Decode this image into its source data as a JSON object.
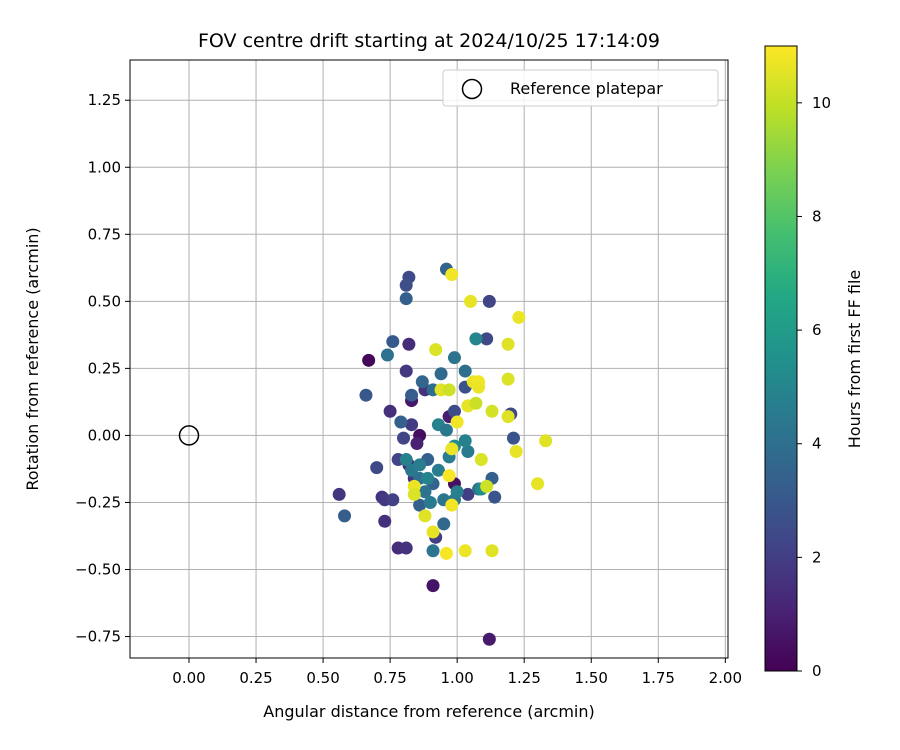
{
  "chart_data": {
    "type": "scatter",
    "title": "FOV centre drift starting at 2024/10/25 17:14:09",
    "xlabel": "Angular distance from reference (arcmin)",
    "ylabel": "Rotation from reference (arcmin)",
    "xlim": [
      -0.22,
      2.01
    ],
    "ylim": [
      -0.83,
      1.4
    ],
    "grid": true,
    "legend_position": "top-right",
    "x_ticks": [
      "0.00",
      "0.25",
      "0.50",
      "0.75",
      "1.00",
      "1.25",
      "1.50",
      "1.75",
      "2.00"
    ],
    "y_ticks": [
      "1.25",
      "1.00",
      "0.75",
      "0.50",
      "0.25",
      "0.00",
      "−0.25",
      "−0.50",
      "−0.75"
    ],
    "colorbar": {
      "label": "Hours from first FF file",
      "range": [
        0,
        11
      ],
      "ticks": [
        "0",
        "2",
        "4",
        "6",
        "8",
        "10"
      ],
      "colormap": "viridis"
    },
    "reference": {
      "label": "Reference platepar",
      "x": 0.0,
      "y": 0.0
    },
    "points": [
      {
        "x": 0.67,
        "y": 0.28,
        "h": 0.2
      },
      {
        "x": 0.91,
        "y": -0.56,
        "h": 0.6
      },
      {
        "x": 1.12,
        "y": -0.76,
        "h": 0.8
      },
      {
        "x": 0.86,
        "y": 0.0,
        "h": 0.4
      },
      {
        "x": 0.99,
        "y": -0.18,
        "h": 0.5
      },
      {
        "x": 0.97,
        "y": 0.07,
        "h": 0.9
      },
      {
        "x": 0.83,
        "y": 0.13,
        "h": 0.7
      },
      {
        "x": 0.85,
        "y": -0.03,
        "h": 1.0
      },
      {
        "x": 0.56,
        "y": -0.22,
        "h": 1.7
      },
      {
        "x": 0.72,
        "y": -0.23,
        "h": 1.6
      },
      {
        "x": 0.73,
        "y": -0.32,
        "h": 1.5
      },
      {
        "x": 0.78,
        "y": -0.42,
        "h": 1.4
      },
      {
        "x": 0.81,
        "y": -0.42,
        "h": 1.6
      },
      {
        "x": 0.75,
        "y": 0.09,
        "h": 1.5
      },
      {
        "x": 0.82,
        "y": 0.34,
        "h": 1.4
      },
      {
        "x": 0.81,
        "y": 0.24,
        "h": 1.8
      },
      {
        "x": 0.88,
        "y": 0.17,
        "h": 1.6
      },
      {
        "x": 0.83,
        "y": 0.04,
        "h": 1.9
      },
      {
        "x": 0.82,
        "y": -0.11,
        "h": 1.5
      },
      {
        "x": 0.84,
        "y": -0.16,
        "h": 1.7
      },
      {
        "x": 0.92,
        "y": -0.38,
        "h": 2.0
      },
      {
        "x": 1.04,
        "y": -0.22,
        "h": 2.0
      },
      {
        "x": 0.73,
        "y": -0.24,
        "h": 1.8
      },
      {
        "x": 0.76,
        "y": -0.24,
        "h": 2.1
      },
      {
        "x": 0.7,
        "y": -0.12,
        "h": 2.4
      },
      {
        "x": 0.78,
        "y": -0.09,
        "h": 2.2
      },
      {
        "x": 0.8,
        "y": -0.01,
        "h": 2.3
      },
      {
        "x": 0.82,
        "y": 0.59,
        "h": 2.5
      },
      {
        "x": 0.81,
        "y": 0.56,
        "h": 2.6
      },
      {
        "x": 1.12,
        "y": 0.5,
        "h": 2.2
      },
      {
        "x": 1.11,
        "y": 0.36,
        "h": 2.4
      },
      {
        "x": 1.2,
        "y": 0.08,
        "h": 2.3
      },
      {
        "x": 1.21,
        "y": -0.01,
        "h": 2.8
      },
      {
        "x": 1.14,
        "y": -0.23,
        "h": 2.9
      },
      {
        "x": 1.03,
        "y": 0.18,
        "h": 2.7
      },
      {
        "x": 0.99,
        "y": 0.09,
        "h": 2.5
      },
      {
        "x": 0.66,
        "y": 0.15,
        "h": 3.0
      },
      {
        "x": 0.58,
        "y": -0.3,
        "h": 3.2
      },
      {
        "x": 0.76,
        "y": 0.35,
        "h": 3.1
      },
      {
        "x": 0.81,
        "y": 0.51,
        "h": 3.3
      },
      {
        "x": 0.96,
        "y": 0.62,
        "h": 3.5
      },
      {
        "x": 0.83,
        "y": 0.15,
        "h": 3.2
      },
      {
        "x": 0.79,
        "y": 0.05,
        "h": 3.4
      },
      {
        "x": 0.87,
        "y": 0.2,
        "h": 3.6
      },
      {
        "x": 0.89,
        "y": -0.09,
        "h": 3.4
      },
      {
        "x": 0.86,
        "y": -0.26,
        "h": 3.3
      },
      {
        "x": 0.91,
        "y": -0.18,
        "h": 3.5
      },
      {
        "x": 0.95,
        "y": -0.33,
        "h": 3.7
      },
      {
        "x": 1.13,
        "y": -0.16,
        "h": 3.3
      },
      {
        "x": 1.08,
        "y": -0.2,
        "h": 3.9
      },
      {
        "x": 0.94,
        "y": 0.23,
        "h": 3.8
      },
      {
        "x": 0.91,
        "y": 0.17,
        "h": 3.9
      },
      {
        "x": 1.03,
        "y": 0.24,
        "h": 4.0
      },
      {
        "x": 0.99,
        "y": 0.29,
        "h": 4.2
      },
      {
        "x": 0.74,
        "y": 0.3,
        "h": 4.1
      },
      {
        "x": 0.91,
        "y": -0.43,
        "h": 4.3
      },
      {
        "x": 0.86,
        "y": -0.16,
        "h": 4.1
      },
      {
        "x": 0.83,
        "y": -0.13,
        "h": 4.4
      },
      {
        "x": 0.88,
        "y": -0.21,
        "h": 4.2
      },
      {
        "x": 0.9,
        "y": -0.25,
        "h": 4.5
      },
      {
        "x": 0.93,
        "y": -0.13,
        "h": 4.6
      },
      {
        "x": 0.95,
        "y": -0.24,
        "h": 4.3
      },
      {
        "x": 0.99,
        "y": -0.24,
        "h": 4.4
      },
      {
        "x": 1.0,
        "y": -0.21,
        "h": 4.7
      },
      {
        "x": 1.04,
        "y": -0.06,
        "h": 4.5
      },
      {
        "x": 1.03,
        "y": -0.02,
        "h": 4.8
      },
      {
        "x": 0.97,
        "y": -0.08,
        "h": 4.6
      },
      {
        "x": 0.93,
        "y": 0.04,
        "h": 4.9
      },
      {
        "x": 0.96,
        "y": 0.02,
        "h": 4.4
      },
      {
        "x": 0.81,
        "y": -0.09,
        "h": 4.8
      },
      {
        "x": 0.86,
        "y": -0.11,
        "h": 4.6
      },
      {
        "x": 0.89,
        "y": -0.16,
        "h": 4.9
      },
      {
        "x": 1.07,
        "y": 0.36,
        "h": 5.0
      },
      {
        "x": 0.99,
        "y": -0.04,
        "h": 5.2
      },
      {
        "x": 1.09,
        "y": -0.2,
        "h": 5.3
      },
      {
        "x": 0.98,
        "y": 0.6,
        "h": 10.8
      },
      {
        "x": 1.05,
        "y": 0.5,
        "h": 10.6
      },
      {
        "x": 1.23,
        "y": 0.44,
        "h": 10.7
      },
      {
        "x": 1.19,
        "y": 0.34,
        "h": 10.5
      },
      {
        "x": 0.92,
        "y": 0.32,
        "h": 10.4
      },
      {
        "x": 1.06,
        "y": 0.2,
        "h": 10.6
      },
      {
        "x": 1.08,
        "y": 0.2,
        "h": 10.8
      },
      {
        "x": 1.08,
        "y": 0.18,
        "h": 10.7
      },
      {
        "x": 0.94,
        "y": 0.17,
        "h": 10.5
      },
      {
        "x": 0.97,
        "y": 0.17,
        "h": 10.2
      },
      {
        "x": 1.19,
        "y": 0.21,
        "h": 10.4
      },
      {
        "x": 1.04,
        "y": 0.11,
        "h": 10.6
      },
      {
        "x": 1.07,
        "y": 0.12,
        "h": 10.1
      },
      {
        "x": 1.13,
        "y": 0.09,
        "h": 10.3
      },
      {
        "x": 1.19,
        "y": 0.07,
        "h": 10.5
      },
      {
        "x": 1.0,
        "y": 0.05,
        "h": 10.8
      },
      {
        "x": 0.98,
        "y": -0.05,
        "h": 10.7
      },
      {
        "x": 1.09,
        "y": -0.09,
        "h": 10.4
      },
      {
        "x": 1.22,
        "y": -0.06,
        "h": 10.6
      },
      {
        "x": 1.33,
        "y": -0.02,
        "h": 10.5
      },
      {
        "x": 0.97,
        "y": -0.15,
        "h": 10.9
      },
      {
        "x": 0.84,
        "y": -0.19,
        "h": 10.7
      },
      {
        "x": 0.84,
        "y": -0.22,
        "h": 10.4
      },
      {
        "x": 1.11,
        "y": -0.19,
        "h": 10.2
      },
      {
        "x": 1.3,
        "y": -0.18,
        "h": 10.6
      },
      {
        "x": 0.98,
        "y": -0.26,
        "h": 10.8
      },
      {
        "x": 0.88,
        "y": -0.3,
        "h": 10.5
      },
      {
        "x": 0.91,
        "y": -0.36,
        "h": 10.6
      },
      {
        "x": 0.96,
        "y": -0.44,
        "h": 10.9
      },
      {
        "x": 1.03,
        "y": -0.43,
        "h": 10.7
      },
      {
        "x": 1.13,
        "y": -0.43,
        "h": 10.5
      }
    ]
  }
}
